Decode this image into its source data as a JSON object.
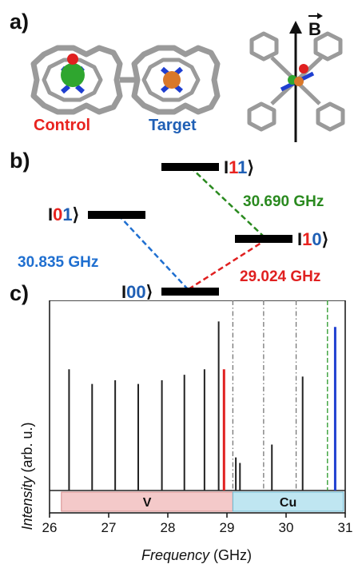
{
  "panel_a": {
    "label": "a)",
    "control_label": "Control",
    "target_label": "Target",
    "field_symbol": "B",
    "colors": {
      "control": "#e8231f",
      "target": "#1f5fb5",
      "metal_v": "#2fa62f",
      "metal_cu": "#d9782a",
      "oxygen": "#e02020",
      "nitrogen": "#1f3fd0",
      "carbon": "#9a9a9a"
    }
  },
  "panel_b": {
    "label": "b)",
    "states": [
      {
        "name": "state-00",
        "d1": "0",
        "d2": "0",
        "c1": "#1f5fb5",
        "c2": "#1f5fb5"
      },
      {
        "name": "state-01",
        "d1": "0",
        "d2": "1",
        "c1": "#e8231f",
        "c2": "#1f5fb5"
      },
      {
        "name": "state-10",
        "d1": "1",
        "d2": "0",
        "c1": "#e8231f",
        "c2": "#1f5fb5"
      },
      {
        "name": "state-11",
        "d1": "1",
        "d2": "1",
        "c1": "#e8231f",
        "c2": "#1f5fb5"
      }
    ],
    "transitions": [
      {
        "name": "freq-blue",
        "text": "30.835 GHz",
        "color": "#1f6fd0"
      },
      {
        "name": "freq-green",
        "text": "30.690 GHz",
        "color": "#2a8a1f"
      },
      {
        "name": "freq-red",
        "text": "29.024 GHz",
        "color": "#e02020"
      }
    ]
  },
  "panel_c": {
    "label": "c)",
    "chart_data": {
      "type": "line",
      "xlabel_italic": "Frequency",
      "xlabel_unit": " (GHz)",
      "ylabel_italic": "Intensity",
      "ylabel_unit": " (arb. u.)",
      "xlim": [
        26,
        31
      ],
      "ylim": [
        0,
        1
      ],
      "x_ticks": [
        "26",
        "27",
        "28",
        "29",
        "30",
        "31"
      ],
      "tick_values": [
        26,
        27,
        28,
        29,
        30,
        31
      ],
      "series": [
        {
          "color": "#222222",
          "peaks": [
            {
              "x": 26.33,
              "y": 0.66
            },
            {
              "x": 26.72,
              "y": 0.58
            },
            {
              "x": 27.11,
              "y": 0.6
            },
            {
              "x": 27.5,
              "y": 0.58
            },
            {
              "x": 27.9,
              "y": 0.6
            },
            {
              "x": 28.28,
              "y": 0.63
            },
            {
              "x": 28.62,
              "y": 0.66
            },
            {
              "x": 28.86,
              "y": 0.92
            },
            {
              "x": 29.15,
              "y": 0.18
            },
            {
              "x": 29.22,
              "y": 0.15
            },
            {
              "x": 29.76,
              "y": 0.25
            },
            {
              "x": 30.28,
              "y": 0.62
            }
          ]
        },
        {
          "color": "#e02020",
          "peaks": [
            {
              "x": 28.95,
              "y": 0.66
            }
          ]
        },
        {
          "color": "#2040d0",
          "peaks": [
            {
              "x": 30.83,
              "y": 0.89
            }
          ]
        }
      ],
      "vlines": [
        {
          "x": 29.1,
          "color": "#777777"
        },
        {
          "x": 29.62,
          "color": "#777777"
        },
        {
          "x": 30.17,
          "color": "#777777"
        },
        {
          "x": 30.7,
          "color": "#2a9a2a"
        }
      ],
      "bands": [
        {
          "label": "V",
          "x0": 26.2,
          "x1": 29.1,
          "fill": "#f4c9c9",
          "stroke": "#d58a8a"
        },
        {
          "label": "Cu",
          "x0": 29.1,
          "x1": 30.97,
          "fill": "#bfe6f1",
          "stroke": "#6ab7cf"
        }
      ]
    }
  }
}
